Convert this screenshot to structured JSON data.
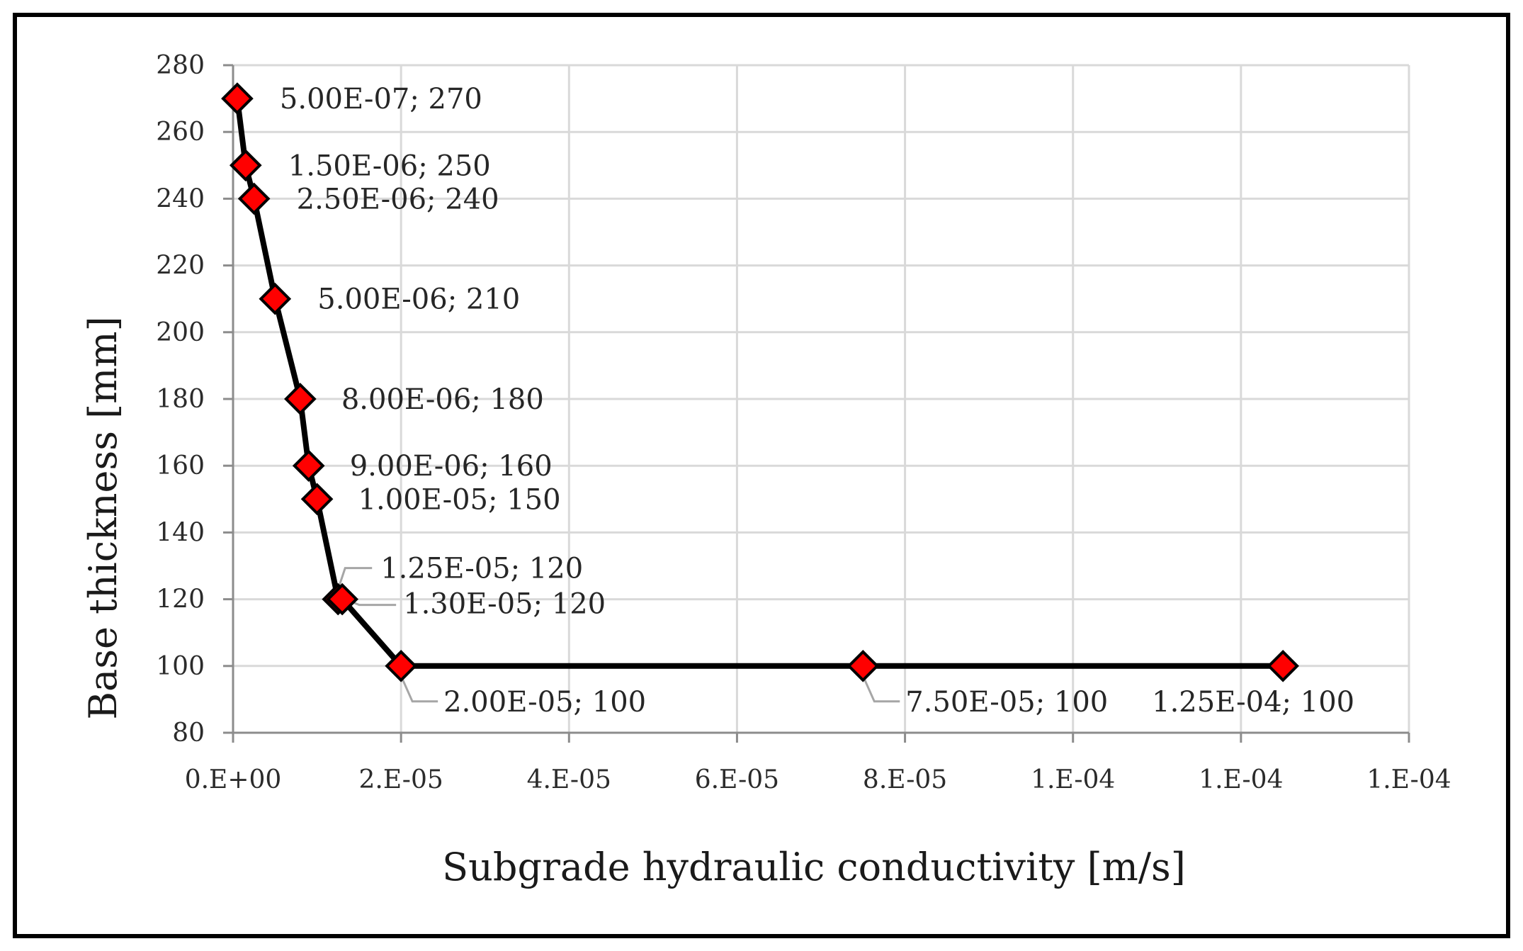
{
  "chart_data": {
    "type": "line",
    "title": "",
    "xlabel": "Subgrade hydraulic conductivity [m/s]",
    "ylabel": "Base thickness [mm]",
    "xlim": [
      0,
      0.00014
    ],
    "ylim": [
      80,
      280
    ],
    "grid": true,
    "x_tick_values": [
      0,
      2e-05,
      4e-05,
      6e-05,
      8e-05,
      0.0001,
      0.00012,
      0.00014
    ],
    "x_tick_labels": [
      "0.E+00",
      "2.E-05",
      "4.E-05",
      "6.E-05",
      "8.E-05",
      "1.E-04",
      "1.E-04",
      "1.E-04"
    ],
    "y_ticks": [
      80,
      100,
      120,
      140,
      160,
      180,
      200,
      220,
      240,
      260,
      280
    ],
    "colors": {
      "line": "#000000",
      "marker_fill": "#ff0000",
      "marker_stroke": "#000000",
      "grid": "#d9d9d9",
      "leader": "#a6a6a6"
    },
    "series": [
      {
        "name": "Base thickness",
        "x": [
          5e-07,
          1.5e-06,
          2.5e-06,
          5e-06,
          8e-06,
          9e-06,
          1e-05,
          1.25e-05,
          1.3e-05,
          2e-05,
          7.5e-05,
          0.000125
        ],
        "y": [
          270,
          250,
          240,
          210,
          180,
          160,
          150,
          120,
          120,
          100,
          100,
          100
        ],
        "data_labels": [
          "5.00E-07; 270",
          "1.50E-06; 250",
          "2.50E-06; 240",
          "5.00E-06; 210",
          "8.00E-06; 180",
          "9.00E-06; 160",
          "1.00E-05; 150",
          "1.25E-05; 120",
          "1.30E-05; 120",
          "2.00E-05; 100",
          "7.50E-05; 100",
          "1.25E-04; 100"
        ]
      }
    ]
  }
}
